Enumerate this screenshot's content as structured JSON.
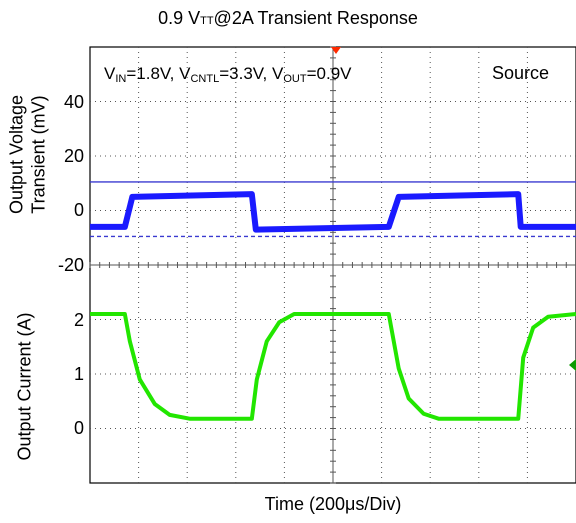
{
  "chart_data": [
    {
      "type": "line",
      "title_prefix": "0.9 V",
      "title_sub": "TT",
      "title_suffix": "@2A Transient Response",
      "ylabel_line1": "Output Voltage",
      "ylabel_line2": "Transient (mV)",
      "ylim": [
        -20,
        60
      ],
      "yticks": [
        "40",
        "20",
        "0",
        "-20"
      ],
      "annotation": {
        "vin": "V",
        "vin_sub": "IN",
        "vin_val": "=1.8V, ",
        "vcntl": "V",
        "vcntl_sub": "CNTL",
        "vcntl_val": "=3.3V, ",
        "vout": "V",
        "vout_sub": "OUT",
        "vout_val": "=0.9V",
        "mode": "Source"
      },
      "series": [
        {
          "x": [
            0,
            70,
            85,
            325,
            333,
            600,
            620,
            860,
            865,
            976
          ],
          "values": [
            -6,
            -6,
            5,
            6,
            -7,
            -6,
            5,
            6,
            -6,
            -6
          ]
        }
      ],
      "cursor_levels": [
        10.5,
        -9.5
      ],
      "color": "#1a1aff"
    },
    {
      "type": "line",
      "ylabel": "Output Current (A)",
      "ylim": [
        -1,
        3
      ],
      "yticks": [
        "2",
        "1",
        "0"
      ],
      "series": [
        {
          "x": [
            0,
            70,
            80,
            100,
            130,
            160,
            200,
            325,
            335,
            355,
            380,
            410,
            600,
            620,
            640,
            670,
            700,
            860,
            870,
            890,
            920,
            976
          ],
          "values": [
            2.1,
            2.1,
            1.6,
            0.9,
            0.45,
            0.25,
            0.18,
            0.18,
            0.9,
            1.6,
            1.95,
            2.1,
            2.1,
            1.1,
            0.55,
            0.27,
            0.18,
            0.18,
            1.3,
            1.85,
            2.05,
            2.1
          ]
        }
      ],
      "color": "#22e600"
    }
  ],
  "xlabel": "Time (200μs/Div)",
  "colors": {
    "grid": "#555555",
    "frame": "#000000"
  }
}
